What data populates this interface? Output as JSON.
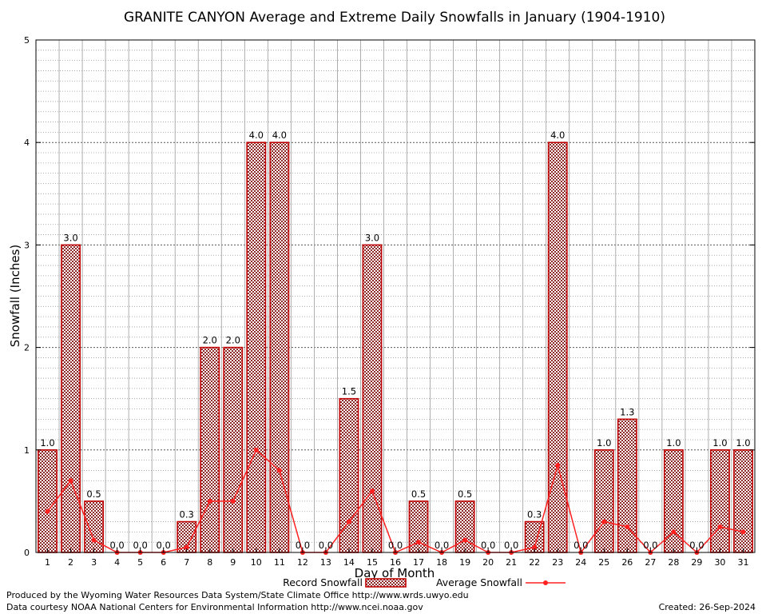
{
  "chart_data": {
    "type": "bar",
    "title": "GRANITE CANYON Average and Extreme Daily Snowfalls in January (1904-1910)",
    "xlabel": "Day of Month",
    "ylabel": "Snowfall (Inches)",
    "ylim": [
      0,
      5
    ],
    "yticks": [
      "0",
      "1",
      "2",
      "3",
      "4",
      "5"
    ],
    "categories": [
      "1",
      "2",
      "3",
      "4",
      "5",
      "6",
      "7",
      "8",
      "9",
      "10",
      "11",
      "12",
      "13",
      "14",
      "15",
      "16",
      "17",
      "18",
      "19",
      "20",
      "21",
      "22",
      "23",
      "24",
      "25",
      "26",
      "27",
      "28",
      "29",
      "30",
      "31"
    ],
    "series": [
      {
        "name": "Record Snowfall",
        "kind": "bar",
        "color": "#c00000",
        "values": [
          1.0,
          3.0,
          0.5,
          0.0,
          0.0,
          0.0,
          0.3,
          2.0,
          2.0,
          4.0,
          4.0,
          0.0,
          0.0,
          1.5,
          3.0,
          0.0,
          0.5,
          0.0,
          0.5,
          0.0,
          0.0,
          0.3,
          4.0,
          0.0,
          1.0,
          1.3,
          0.0,
          1.0,
          0.0,
          1.0,
          1.0
        ],
        "labels": [
          "1.0",
          "3.0",
          "0.5",
          "0.0",
          "0.0",
          "0.0",
          "0.3",
          "2.0",
          "2.0",
          "4.0",
          "4.0",
          "0.0",
          "0.0",
          "1.5",
          "3.0",
          "0.0",
          "0.5",
          "0.0",
          "0.5",
          "0.0",
          "0.0",
          "0.3",
          "4.0",
          "0.0",
          "1.0",
          "1.3",
          "0.0",
          "1.0",
          "0.0",
          "1.0",
          "1.0"
        ]
      },
      {
        "name": "Average Snowfall",
        "kind": "line",
        "color": "#ff2020",
        "values": [
          0.4,
          0.7,
          0.12,
          0.0,
          0.0,
          0.0,
          0.05,
          0.5,
          0.5,
          1.0,
          0.8,
          0.0,
          0.0,
          0.3,
          0.6,
          0.0,
          0.1,
          0.0,
          0.12,
          0.0,
          0.0,
          0.05,
          0.85,
          0.0,
          0.3,
          0.25,
          0.0,
          0.2,
          0.0,
          0.25,
          0.2
        ]
      }
    ],
    "grid": true,
    "legend_position": "bottom"
  },
  "footer": {
    "produced_by": "Produced by the Wyoming Water Resources Data System/State Climate Office http://www.wrds.uwyo.edu",
    "courtesy": "Data courtesy NOAA National Centers for Environmental Information http://www.ncei.noaa.gov",
    "created": "Created: 26-Sep-2024"
  }
}
